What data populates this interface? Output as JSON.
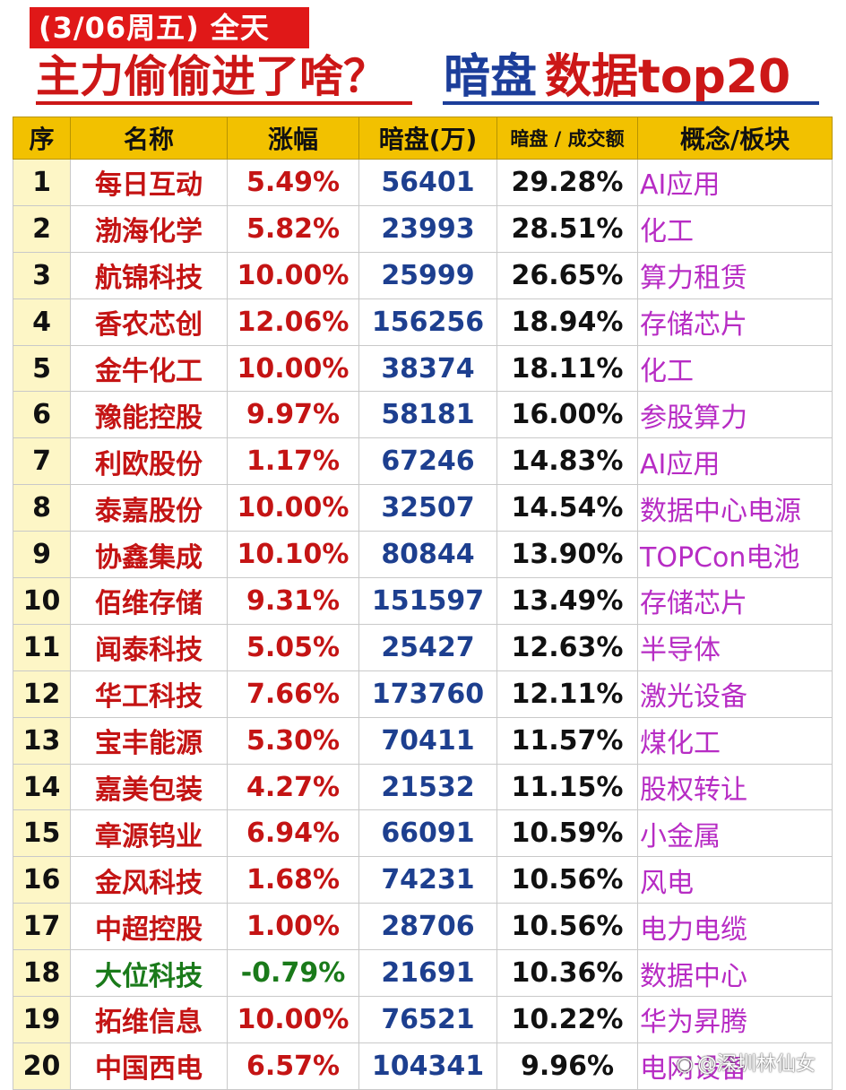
{
  "header": {
    "date_badge": "(3/06周五) 全天",
    "headline_part1": "主力偷偷进了啥？",
    "headline_part2": "暗盘",
    "headline_part3": "数据top20"
  },
  "table": {
    "columns": [
      "序",
      "名称",
      "涨幅",
      "暗盘(万)",
      "暗盘 / 成交额",
      "概念/板块"
    ],
    "rows": [
      {
        "no": "1",
        "name": "每日互动",
        "change": "5.49%",
        "dark": "56401",
        "ratio": "29.28%",
        "concept": "AI应用"
      },
      {
        "no": "2",
        "name": "渤海化学",
        "change": "5.82%",
        "dark": "23993",
        "ratio": "28.51%",
        "concept": "化工"
      },
      {
        "no": "3",
        "name": "航锦科技",
        "change": "10.00%",
        "dark": "25999",
        "ratio": "26.65%",
        "concept": "算力租赁"
      },
      {
        "no": "4",
        "name": "香农芯创",
        "change": "12.06%",
        "dark": "156256",
        "ratio": "18.94%",
        "concept": "存储芯片"
      },
      {
        "no": "5",
        "name": "金牛化工",
        "change": "10.00%",
        "dark": "38374",
        "ratio": "18.11%",
        "concept": "化工"
      },
      {
        "no": "6",
        "name": "豫能控股",
        "change": "9.97%",
        "dark": "58181",
        "ratio": "16.00%",
        "concept": "参股算力"
      },
      {
        "no": "7",
        "name": "利欧股份",
        "change": "1.17%",
        "dark": "67246",
        "ratio": "14.83%",
        "concept": "AI应用"
      },
      {
        "no": "8",
        "name": "泰嘉股份",
        "change": "10.00%",
        "dark": "32507",
        "ratio": "14.54%",
        "concept": "数据中心电源"
      },
      {
        "no": "9",
        "name": "协鑫集成",
        "change": "10.10%",
        "dark": "80844",
        "ratio": "13.90%",
        "concept": "TOPCon电池"
      },
      {
        "no": "10",
        "name": "佰维存储",
        "change": "9.31%",
        "dark": "151597",
        "ratio": "13.49%",
        "concept": "存储芯片"
      },
      {
        "no": "11",
        "name": "闻泰科技",
        "change": "5.05%",
        "dark": "25427",
        "ratio": "12.63%",
        "concept": "半导体"
      },
      {
        "no": "12",
        "name": "华工科技",
        "change": "7.66%",
        "dark": "173760",
        "ratio": "12.11%",
        "concept": "激光设备"
      },
      {
        "no": "13",
        "name": "宝丰能源",
        "change": "5.30%",
        "dark": "70411",
        "ratio": "11.57%",
        "concept": "煤化工"
      },
      {
        "no": "14",
        "name": "嘉美包装",
        "change": "4.27%",
        "dark": "21532",
        "ratio": "11.15%",
        "concept": "股权转让"
      },
      {
        "no": "15",
        "name": "章源钨业",
        "change": "6.94%",
        "dark": "66091",
        "ratio": "10.59%",
        "concept": "小金属"
      },
      {
        "no": "16",
        "name": "金风科技",
        "change": "1.68%",
        "dark": "74231",
        "ratio": "10.56%",
        "concept": "风电"
      },
      {
        "no": "17",
        "name": "中超控股",
        "change": "1.00%",
        "dark": "28706",
        "ratio": "10.56%",
        "concept": "电力电缆"
      },
      {
        "no": "18",
        "name": "大位科技",
        "change": "-0.79%",
        "dark": "21691",
        "ratio": "10.36%",
        "concept": "数据中心"
      },
      {
        "no": "19",
        "name": "拓维信息",
        "change": "10.00%",
        "dark": "76521",
        "ratio": "10.22%",
        "concept": "华为昇腾"
      },
      {
        "no": "20",
        "name": "中国西电",
        "change": "6.57%",
        "dark": "104341",
        "ratio": "9.96%",
        "concept": "电网设备"
      }
    ]
  },
  "watermark": {
    "logo_icon": "weibo-logo-icon",
    "text": "@深圳林仙女"
  },
  "colors": {
    "badge_red": "#e01818",
    "header_yellow": "#f2c100",
    "up_red": "#c41414",
    "down_green": "#1a7a1a",
    "dark_pool_blue": "#1d3f8f",
    "concept_purple": "#b72cc4"
  }
}
